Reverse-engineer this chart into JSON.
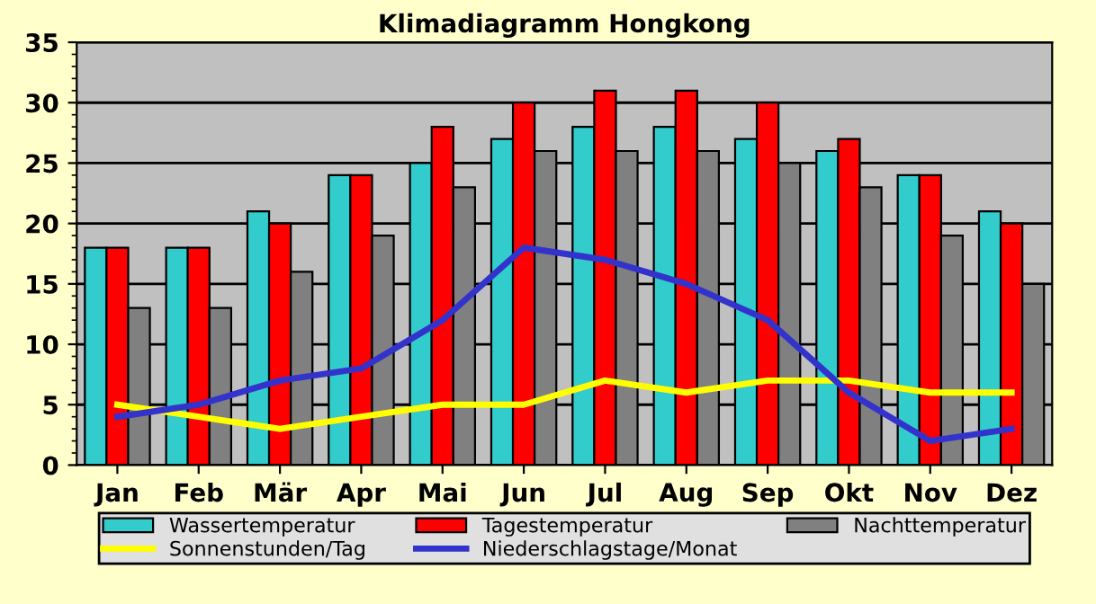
{
  "chart_data": {
    "type": "bar",
    "title": "Klimadiagramm Hongkong",
    "categories": [
      "Jan",
      "Feb",
      "Mär",
      "Apr",
      "Mai",
      "Jun",
      "Jul",
      "Aug",
      "Sep",
      "Okt",
      "Nov",
      "Dez"
    ],
    "series": [
      {
        "name": "Wassertemperatur",
        "color": "#33cccc",
        "values": [
          18,
          18,
          21,
          24,
          25,
          27,
          28,
          28,
          27,
          26,
          24,
          21
        ]
      },
      {
        "name": "Tagestemperatur",
        "color": "#ff0000",
        "values": [
          18,
          18,
          20,
          24,
          28,
          30,
          31,
          31,
          30,
          27,
          24,
          20
        ]
      },
      {
        "name": "Nachttemperatur",
        "color": "#808080",
        "values": [
          13,
          13,
          16,
          19,
          23,
          26,
          26,
          26,
          25,
          23,
          19,
          15
        ]
      },
      {
        "name": "Sonnenstunden/Tag",
        "type": "line",
        "color": "#ffff00",
        "values": [
          5,
          4,
          3,
          4,
          5,
          5,
          7,
          6,
          7,
          7,
          6,
          6
        ]
      },
      {
        "name": "Niederschlagstage/Monat",
        "type": "line",
        "color": "#3333cc",
        "values": [
          4,
          5,
          7,
          8,
          12,
          18,
          17,
          15,
          12,
          6,
          2,
          3
        ]
      }
    ],
    "ylim": [
      0,
      35
    ],
    "yticks": [
      0,
      5,
      10,
      15,
      20,
      25,
      30,
      35
    ],
    "grid": "y",
    "legend": "bottom",
    "line_style": "solid",
    "marker": "none"
  }
}
